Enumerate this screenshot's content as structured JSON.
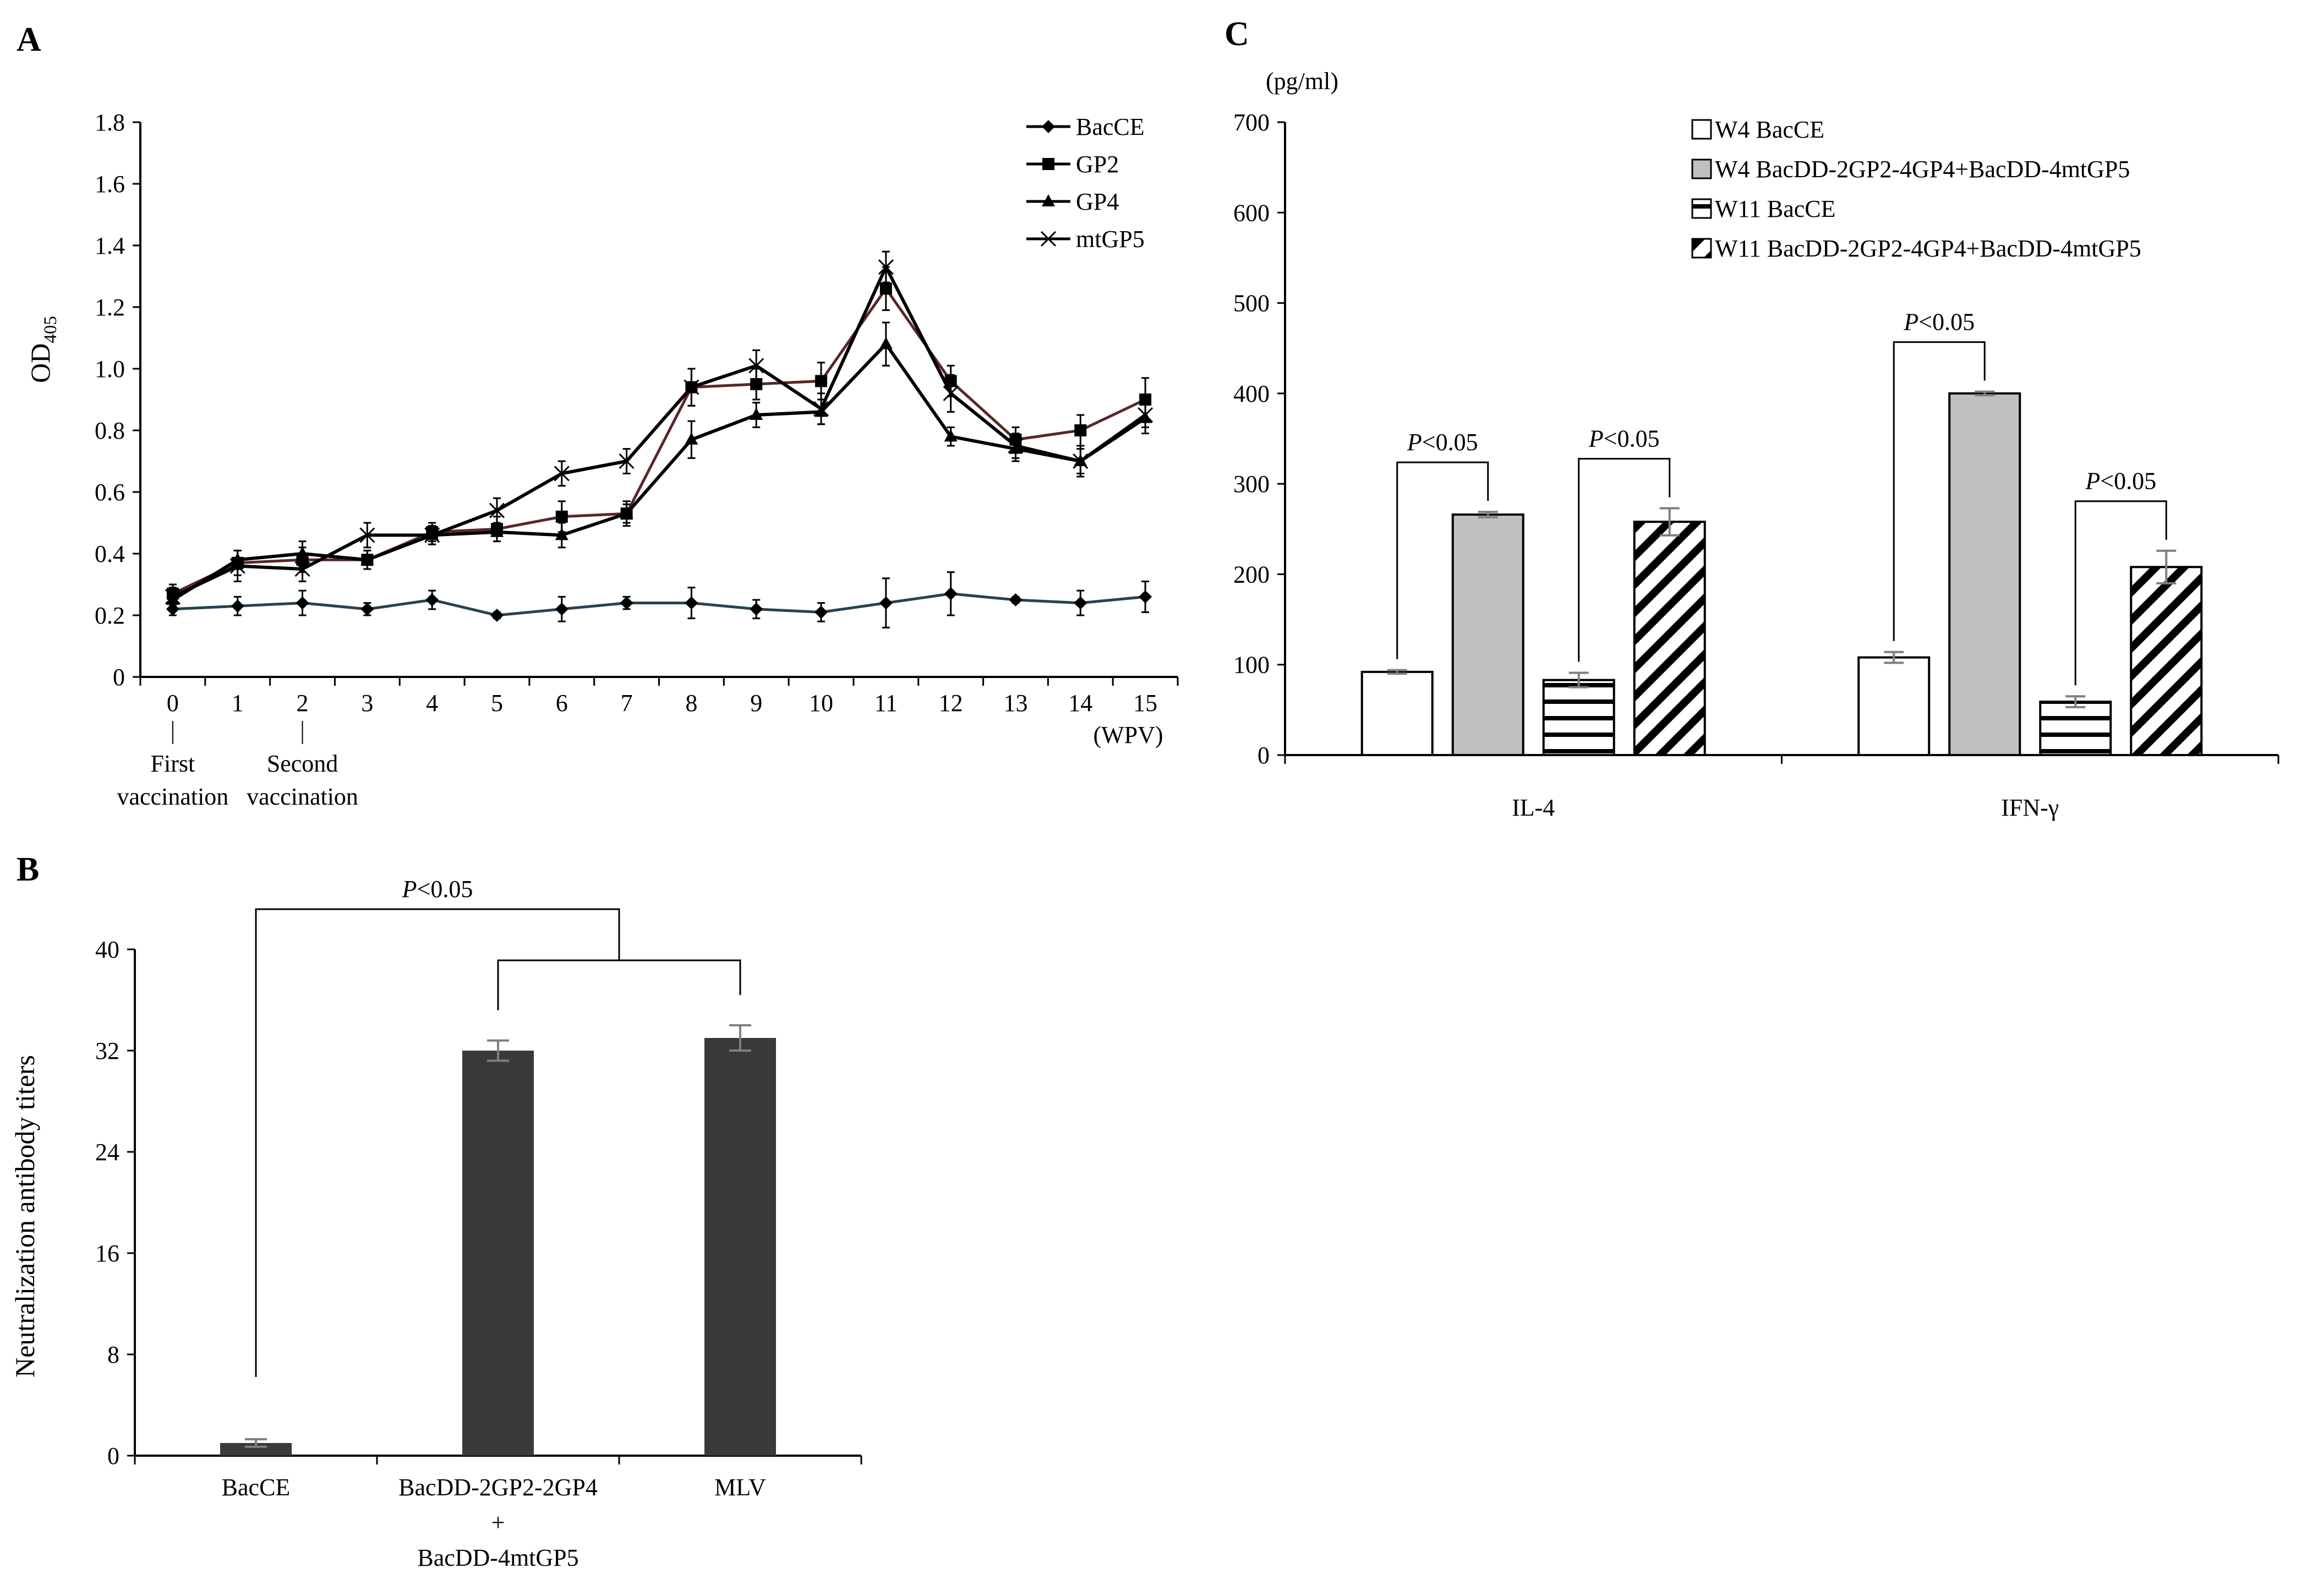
{
  "panel_labels": [
    "A",
    "B",
    "C"
  ],
  "colors": {
    "dark_bar": "#3a3a3a",
    "gray_bar": "#c0c0c0",
    "white_bar": "#ffffff",
    "error_bar": "#7f7f7f",
    "line": "#000000",
    "bacce_line": "#26434f",
    "gp2_line": "#5a2626"
  },
  "chart_data": [
    {
      "panel": "A",
      "type": "line",
      "ylabel_main": "OD",
      "ylabel_sub": "405",
      "x_unit_label": "(WPV)",
      "x": [
        0,
        1,
        2,
        3,
        4,
        5,
        6,
        7,
        8,
        9,
        10,
        11,
        12,
        13,
        14,
        15
      ],
      "xlim": [
        -0.5,
        15.5
      ],
      "ylim": [
        0,
        1.8
      ],
      "yticks": [
        "0",
        "0.2",
        "0.4",
        "0.6",
        "0.8",
        "1.0",
        "1.2",
        "1.4",
        "1.6",
        "1.8"
      ],
      "annotations": [
        {
          "at_x": 0,
          "lines": [
            "First",
            "vaccination"
          ]
        },
        {
          "at_x": 2,
          "lines": [
            "Second",
            "vaccination"
          ]
        }
      ],
      "series": [
        {
          "name": "BacCE",
          "marker": "diamond",
          "values": [
            0.22,
            0.23,
            0.24,
            0.22,
            0.25,
            0.2,
            0.22,
            0.24,
            0.24,
            0.22,
            0.21,
            0.24,
            0.27,
            0.25,
            0.24,
            0.26
          ],
          "errors": [
            0.02,
            0.03,
            0.04,
            0.02,
            0.03,
            0.01,
            0.04,
            0.02,
            0.05,
            0.03,
            0.03,
            0.08,
            0.07,
            0.01,
            0.04,
            0.05
          ]
        },
        {
          "name": "GP2",
          "marker": "square",
          "values": [
            0.27,
            0.37,
            0.38,
            0.38,
            0.47,
            0.48,
            0.52,
            0.53,
            0.94,
            0.95,
            0.96,
            1.26,
            0.96,
            0.77,
            0.8,
            0.9
          ],
          "errors": [
            0.03,
            0.04,
            0.04,
            0.03,
            0.03,
            0.04,
            0.05,
            0.03,
            0.06,
            0.05,
            0.06,
            0.07,
            0.05,
            0.04,
            0.05,
            0.07
          ]
        },
        {
          "name": "GP4",
          "marker": "triangle",
          "values": [
            0.25,
            0.38,
            0.4,
            0.38,
            0.46,
            0.47,
            0.46,
            0.53,
            0.77,
            0.85,
            0.86,
            1.08,
            0.78,
            0.74,
            0.7,
            0.84
          ],
          "errors": [
            0.02,
            0.03,
            0.04,
            0.03,
            0.03,
            0.03,
            0.04,
            0.04,
            0.06,
            0.04,
            0.04,
            0.07,
            0.03,
            0.04,
            0.05,
            0.05
          ]
        },
        {
          "name": "mtGP5",
          "marker": "x",
          "values": [
            0.26,
            0.36,
            0.35,
            0.46,
            0.46,
            0.54,
            0.66,
            0.7,
            0.94,
            1.01,
            0.87,
            1.33,
            0.92,
            0.75,
            0.7,
            0.85
          ],
          "errors": [
            0.03,
            0.05,
            0.04,
            0.04,
            0.03,
            0.04,
            0.04,
            0.04,
            0.06,
            0.05,
            0.05,
            0.05,
            0.06,
            0.04,
            0.04,
            0.04
          ]
        }
      ]
    },
    {
      "panel": "B",
      "type": "bar",
      "ylabel": "Neutralization antibody titers",
      "ylim": [
        0,
        40
      ],
      "yticks": [
        "0",
        "8",
        "16",
        "24",
        "32",
        "40"
      ],
      "categories": [
        {
          "lines": [
            "BacCE"
          ]
        },
        {
          "lines": [
            "BacDD-2GP2-2GP4",
            "+",
            "BacDD-4mtGP5"
          ]
        },
        {
          "lines": [
            "MLV"
          ]
        }
      ],
      "values": [
        1.0,
        32.0,
        33.0
      ],
      "errors": [
        0.3,
        0.8,
        1.0
      ],
      "significance": [
        {
          "text_italic": "P",
          "text": "<0.05"
        }
      ]
    },
    {
      "panel": "C",
      "type": "bar",
      "unit_label": "(pg/ml)",
      "ylim": [
        0,
        700
      ],
      "yticks": [
        "0",
        "100",
        "200",
        "300",
        "400",
        "500",
        "600",
        "700"
      ],
      "categories": [
        "IL-4",
        "IFN-γ"
      ],
      "series": [
        {
          "name": "W4 BacCE",
          "pattern": "white",
          "values": [
            92,
            108
          ],
          "errors": [
            2,
            6
          ]
        },
        {
          "name": "W4 BacDD-2GP2-4GP4+BacDD-4mtGP5",
          "pattern": "gray",
          "values": [
            266,
            400
          ],
          "errors": [
            3,
            2
          ]
        },
        {
          "name": "W11 BacCE",
          "pattern": "horizontal-lines",
          "values": [
            83,
            59
          ],
          "errors": [
            8,
            6
          ]
        },
        {
          "name": "W11 BacDD-2GP2-4GP4+BacDD-4mtGP5",
          "pattern": "diagonal-lines",
          "values": [
            258,
            208
          ],
          "errors": [
            15,
            18
          ]
        }
      ],
      "significance": [
        {
          "category": 0,
          "pair": [
            0,
            1
          ],
          "text_italic": "P",
          "text": "<0.05"
        },
        {
          "category": 0,
          "pair": [
            2,
            3
          ],
          "text_italic": "P",
          "text": "<0.05"
        },
        {
          "category": 1,
          "pair": [
            0,
            1
          ],
          "text_italic": "P",
          "text": "<0.05"
        },
        {
          "category": 1,
          "pair": [
            2,
            3
          ],
          "text_italic": "P",
          "text": "<0.05"
        }
      ]
    }
  ]
}
